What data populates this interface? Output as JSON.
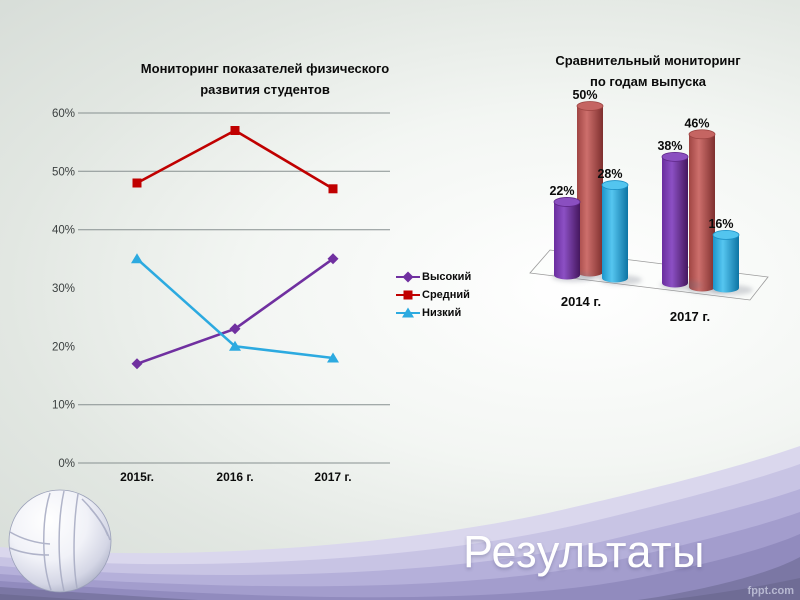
{
  "slide": {
    "title": "Результаты",
    "watermark": "fppt.com"
  },
  "chart_data": [
    {
      "type": "line",
      "title": "Мониторинг показателей  физического\nразвития студентов",
      "categories": [
        "2015г.",
        "2016 г.",
        "2017 г."
      ],
      "y_ticks": [
        60,
        50,
        40,
        30,
        20,
        10,
        0
      ],
      "gridline_values": [
        60,
        50,
        40,
        10,
        0
      ],
      "ylim": [
        0,
        60
      ],
      "y_tick_suffix": "%",
      "legend_position": "right",
      "grid": "partial-horizontal",
      "series": [
        {
          "name": "Высокий",
          "marker": "diamond",
          "color": "#7030a0",
          "values": [
            17,
            23,
            35
          ]
        },
        {
          "name": "Средний",
          "marker": "square",
          "color": "#c00000",
          "values": [
            48,
            57,
            47
          ]
        },
        {
          "name": "Низкий",
          "marker": "triangle",
          "color": "#2caae0",
          "values": [
            35,
            20,
            18
          ]
        }
      ]
    },
    {
      "type": "bar",
      "shape": "3d-cylinder",
      "title": "Сравнительный мониторинг\nпо годам выпуска",
      "categories": [
        "2014 г.",
        "2017 г."
      ],
      "value_label_suffix": "%",
      "legend_position": "none",
      "series": [
        {
          "color": "#7030a0",
          "values": [
            22,
            38
          ]
        },
        {
          "color": "#c0504d",
          "values": [
            50,
            46
          ]
        },
        {
          "color": "#29abe2",
          "values": [
            28,
            16
          ]
        }
      ]
    }
  ]
}
